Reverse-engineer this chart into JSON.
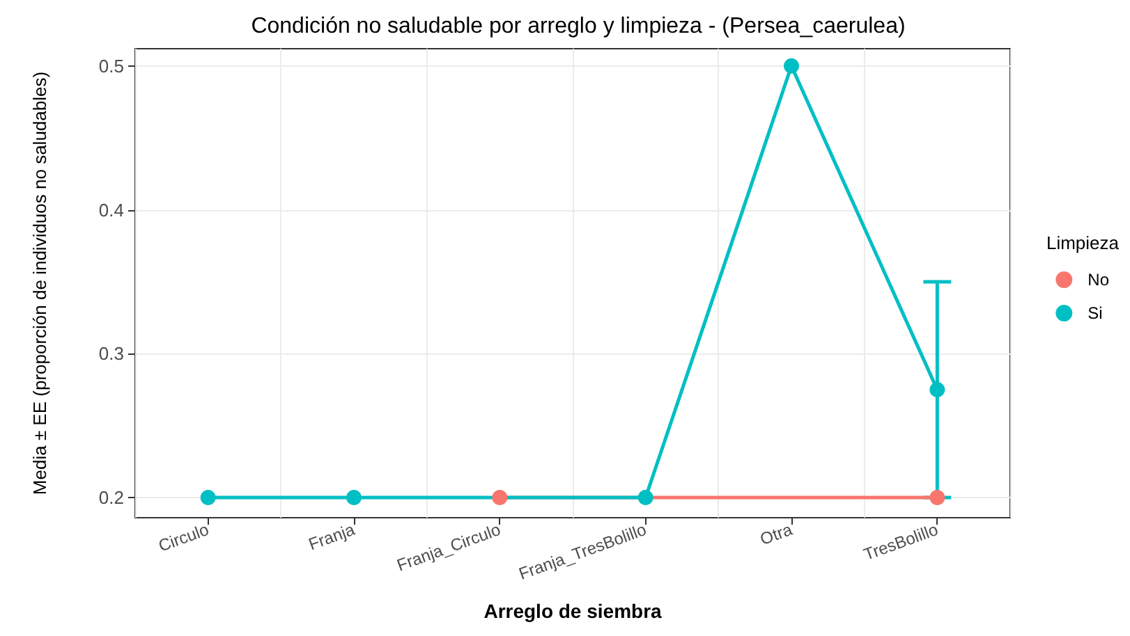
{
  "chart_data": {
    "type": "line",
    "title": "Condición no saludable por arreglo y limpieza - (Persea_caerulea)",
    "xlabel": "Arreglo de siembra",
    "ylabel": "Media ± EE (proporción de individuos no saludables)",
    "legend_title": "Limpieza",
    "categories": [
      "Circulo",
      "Franja",
      "Franja_Circulo",
      "Franja_TresBolillo",
      "Otra",
      "TresBolillo"
    ],
    "series": [
      {
        "name": "No",
        "color": "#f8766d",
        "values": [
          null,
          null,
          0.2,
          null,
          null,
          0.2
        ]
      },
      {
        "name": "Si",
        "color": "#00bfc4",
        "values": [
          0.2,
          0.2,
          null,
          0.2,
          0.5,
          0.275
        ],
        "errors": [
          null,
          null,
          null,
          null,
          null,
          0.075
        ]
      }
    ],
    "ylim": [
      0.186,
      0.512
    ],
    "yticks": [
      0.2,
      0.3,
      0.4,
      0.5
    ],
    "grid": true,
    "legend": "right",
    "marker": "circle",
    "line_style": "solid"
  }
}
